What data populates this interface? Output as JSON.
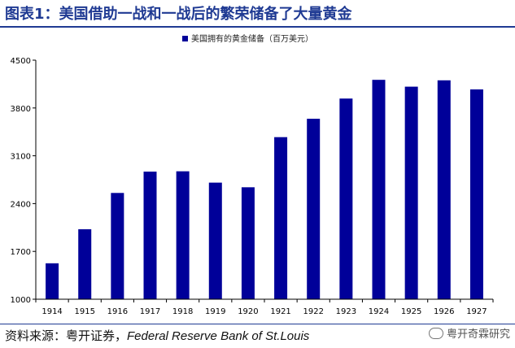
{
  "header": {
    "title": "图表1：美国借助一战和一战后的繁荣储备了大量黄金"
  },
  "chart_data": {
    "type": "bar",
    "categories": [
      "1914",
      "1915",
      "1916",
      "1917",
      "1918",
      "1919",
      "1920",
      "1921",
      "1922",
      "1923",
      "1924",
      "1925",
      "1926",
      "1927"
    ],
    "series": [
      {
        "name": "美国拥有的黄金储备（百万美元）",
        "values": [
          1526,
          2025,
          2556,
          2868,
          2873,
          2707,
          2639,
          3373,
          3642,
          3938,
          4212,
          4112,
          4205,
          4072
        ]
      }
    ],
    "ylim": [
      1000,
      4500
    ],
    "yticks": [
      1000,
      1700,
      2400,
      3100,
      3800,
      4500
    ],
    "legend": "top",
    "grid": false,
    "bar_color": "#000099"
  },
  "footer": {
    "source_label": "资料来源：粤开证券，",
    "source_text": "Federal Reserve Bank of St.Louis",
    "watermark": "粤开奇霖研究"
  }
}
